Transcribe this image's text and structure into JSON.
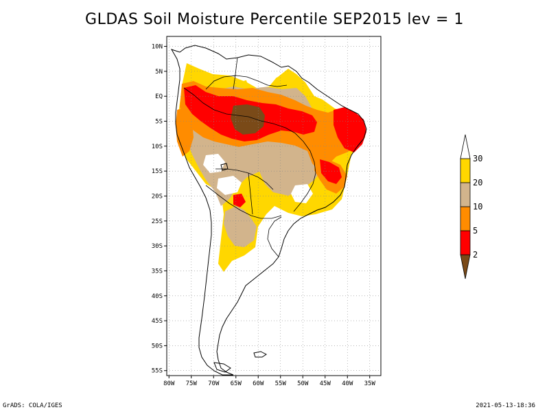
{
  "title": "GLDAS Soil Moisture Percentile SEP2015 lev = 1",
  "footer": {
    "left": "GrADS: COLA/IGES",
    "right": "2021-05-13-18:36"
  },
  "axes": {
    "lat_labels": [
      "10N",
      "5N",
      "EQ",
      "5S",
      "10S",
      "15S",
      "20S",
      "25S",
      "30S",
      "35S",
      "40S",
      "45S",
      "50S",
      "55S"
    ],
    "lat_values": [
      10,
      5,
      0,
      -5,
      -10,
      -15,
      -20,
      -25,
      -30,
      -35,
      -40,
      -45,
      -50,
      -55
    ],
    "lon_labels": [
      "80W",
      "75W",
      "70W",
      "65W",
      "60W",
      "55W",
      "50W",
      "45W",
      "40W",
      "35W"
    ],
    "lon_values": [
      -80,
      -75,
      -70,
      -65,
      -60,
      -55,
      -50,
      -45,
      -40,
      -35
    ],
    "lon_range": [
      -80.5,
      -32.5
    ],
    "lat_range": [
      -56,
      12
    ]
  },
  "legend": {
    "labels": [
      "2",
      "5",
      "10",
      "20",
      "30"
    ],
    "colors": [
      "#7a4a18",
      "#ff0000",
      "#ff8c00",
      "#d2b48c",
      "#ffd700",
      "#ffffff"
    ],
    "color_names": [
      "brown",
      "red",
      "orange",
      "tan",
      "gold",
      "white"
    ]
  },
  "map": {
    "grid": "dotted",
    "projection": "lat-lon",
    "region": "South America",
    "levels_percentile": [
      2,
      5,
      10,
      20,
      30
    ]
  }
}
